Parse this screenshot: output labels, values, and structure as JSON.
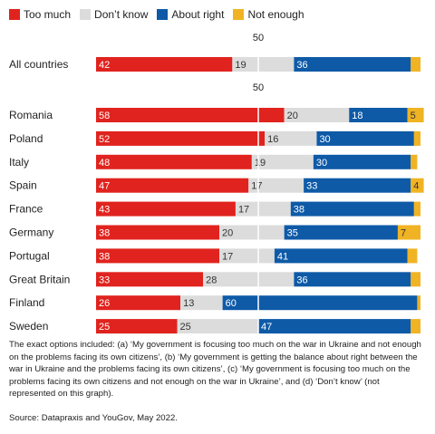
{
  "legend": [
    {
      "label": "Too much",
      "color": "#e0231e"
    },
    {
      "label": "Don’t know",
      "color": "#dcdcdc"
    },
    {
      "label": "About right",
      "color": "#0e5aa7"
    },
    {
      "label": "Not enough",
      "color": "#f0b323"
    }
  ],
  "chart_data": {
    "type": "bar",
    "orientation": "horizontal",
    "stacked": true,
    "reference_line": {
      "value": 50,
      "label": "50"
    },
    "xlim": [
      0,
      100
    ],
    "groups": [
      {
        "categories": [
          "All countries"
        ],
        "series": [
          {
            "name": "Too much",
            "values": [
              42
            ]
          },
          {
            "name": "Don’t know",
            "values": [
              19
            ]
          },
          {
            "name": "About right",
            "values": [
              36
            ]
          },
          {
            "name": "Not enough",
            "values": [
              3
            ]
          }
        ]
      },
      {
        "categories": [
          "Romania",
          "Poland",
          "Italy",
          "Spain",
          "France",
          "Germany",
          "Portugal",
          "Great Britain",
          "Finland",
          "Sweden"
        ],
        "series": [
          {
            "name": "Too much",
            "values": [
              58,
              52,
              48,
              47,
              43,
              38,
              38,
              33,
              26,
              25
            ]
          },
          {
            "name": "Don’t know",
            "values": [
              20,
              16,
              19,
              17,
              17,
              20,
              17,
              28,
              13,
              25
            ]
          },
          {
            "name": "About right",
            "values": [
              18,
              30,
              30,
              33,
              38,
              35,
              41,
              36,
              60,
              47
            ]
          },
          {
            "name": "Not enough",
            "values": [
              5,
              2,
              2,
              4,
              2,
              7,
              3,
              3,
              1,
              3
            ]
          }
        ]
      }
    ],
    "labels": [
      [
        "42",
        "19",
        "36",
        ""
      ],
      [
        "58",
        "20",
        "18",
        "5"
      ],
      [
        "52",
        "16",
        "30",
        ""
      ],
      [
        "48",
        "19",
        "30",
        ""
      ],
      [
        "47",
        "17",
        "33",
        "4"
      ],
      [
        "43",
        "17",
        "38",
        ""
      ],
      [
        "38",
        "20",
        "35",
        "7"
      ],
      [
        "38",
        "17",
        "41",
        ""
      ],
      [
        "33",
        "28",
        "36",
        ""
      ],
      [
        "26",
        "13",
        "60",
        ""
      ],
      [
        "25",
        "25",
        "47",
        ""
      ]
    ]
  },
  "footnote": "The exact options included: (a) ‘My government is focusing too much on the war in Ukraine and not enough on the problems facing its own citizens’, (b) ‘My government is getting the balance about right between the war in Ukraine and the problems facing its own citizens’, (c) ‘My government is focusing too much on the problems facing its own citizens and not enough on the war in Ukraine’, and (d) ‘Don’t know’ (not represented on this graph).",
  "source": "Source: Datapraxis and YouGov, May 2022."
}
